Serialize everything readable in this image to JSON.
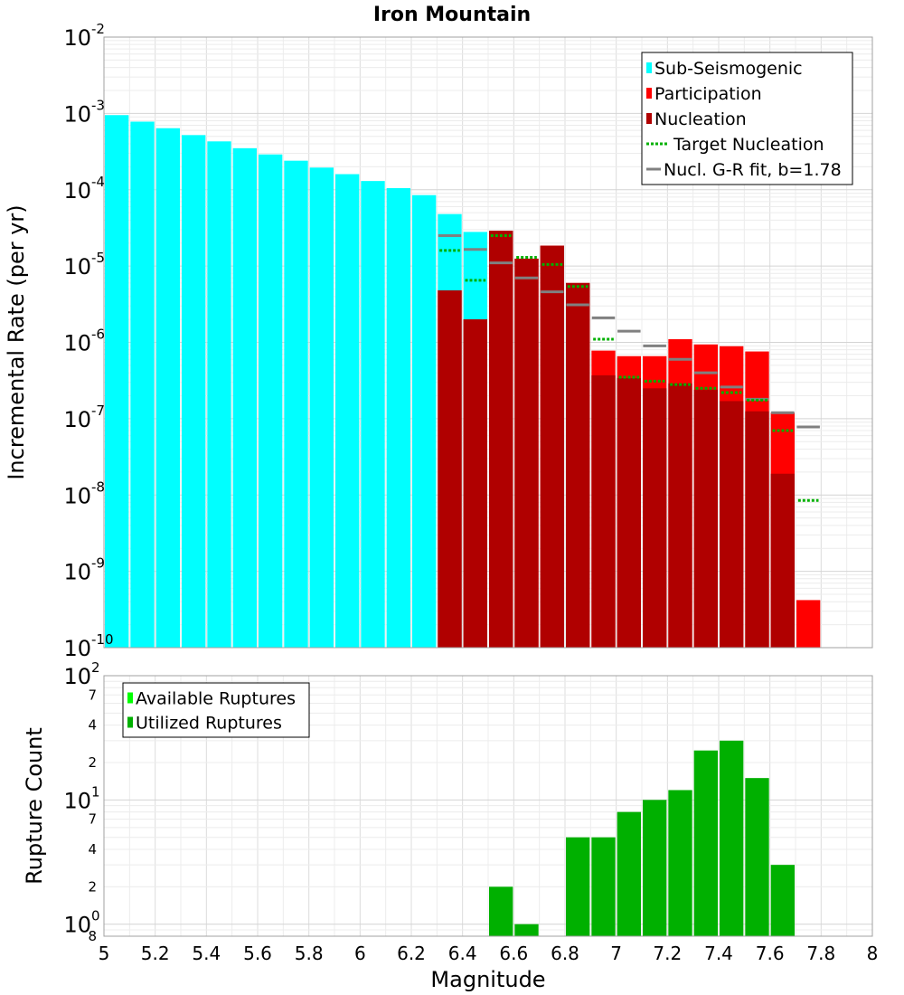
{
  "chart_data": [
    {
      "type": "bar",
      "title": "Iron Mountain",
      "xlabel": "",
      "ylabel": "Incremental Rate (per yr)",
      "xlim": [
        5,
        8
      ],
      "ylim": [
        1e-10,
        0.01
      ],
      "yscale": "log",
      "grid": true,
      "legend_position": "top-right",
      "x_ticks": [
        "5",
        "5.2",
        "5.4",
        "5.6",
        "5.8",
        "6",
        "6.2",
        "6.4",
        "6.6",
        "6.8",
        "7",
        "7.2",
        "7.4",
        "7.6",
        "7.8",
        "8"
      ],
      "y_ticks": [
        {
          "base": "10",
          "exp": "-10"
        },
        {
          "base": "10",
          "exp": "-9"
        },
        {
          "base": "10",
          "exp": "-8"
        },
        {
          "base": "10",
          "exp": "-7"
        },
        {
          "base": "10",
          "exp": "-6"
        },
        {
          "base": "10",
          "exp": "-5"
        },
        {
          "base": "10",
          "exp": "-4"
        },
        {
          "base": "10",
          "exp": "-3"
        },
        {
          "base": "10",
          "exp": "-2"
        }
      ],
      "legend": [
        {
          "label": "Sub-Seismogenic",
          "color": "#00ffff",
          "kind": "box"
        },
        {
          "label": "Participation",
          "color": "#ff0000",
          "kind": "box"
        },
        {
          "label": "Nucleation",
          "color": "#b00000",
          "kind": "box"
        },
        {
          "label": "Target Nucleation",
          "color": "#00b000",
          "kind": "dotted"
        },
        {
          "label": "Nucl. G-R fit, b=1.78",
          "color": "#808080",
          "kind": "line"
        }
      ],
      "series": [
        {
          "name": "Sub-Seismogenic",
          "color": "#00ffff",
          "points": [
            [
              5.05,
              0.00095
            ],
            [
              5.15,
              0.00078
            ],
            [
              5.25,
              0.00064
            ],
            [
              5.35,
              0.00052
            ],
            [
              5.45,
              0.00043
            ],
            [
              5.55,
              0.00035
            ],
            [
              5.65,
              0.00029
            ],
            [
              5.75,
              0.00024
            ],
            [
              5.85,
              0.000195
            ],
            [
              5.95,
              0.00016
            ],
            [
              6.05,
              0.00013
            ],
            [
              6.15,
              0.000105
            ],
            [
              6.25,
              8.5e-05
            ],
            [
              6.35,
              4.8e-05
            ],
            [
              6.45,
              2.8e-05
            ]
          ]
        },
        {
          "name": "Participation",
          "color": "#ff0000",
          "points": [
            [
              6.35,
              4.8e-06
            ],
            [
              6.45,
              2e-06
            ],
            [
              6.55,
              2.9e-05
            ],
            [
              6.65,
              1.25e-05
            ],
            [
              6.75,
              1.85e-05
            ],
            [
              6.85,
              6e-06
            ],
            [
              6.95,
              7.8e-07
            ],
            [
              7.05,
              6.6e-07
            ],
            [
              7.15,
              6.6e-07
            ],
            [
              7.25,
              1.1e-06
            ],
            [
              7.35,
              9.4e-07
            ],
            [
              7.45,
              8.9e-07
            ],
            [
              7.55,
              7.6e-07
            ],
            [
              7.65,
              1.2e-07
            ],
            [
              7.75,
              4.2e-10
            ]
          ]
        },
        {
          "name": "Nucleation",
          "color": "#b00000",
          "points": [
            [
              6.35,
              4.8e-06
            ],
            [
              6.45,
              2e-06
            ],
            [
              6.55,
              2.9e-05
            ],
            [
              6.65,
              1.25e-05
            ],
            [
              6.75,
              1.85e-05
            ],
            [
              6.85,
              6e-06
            ],
            [
              6.95,
              3.7e-07
            ],
            [
              7.05,
              3.4e-07
            ],
            [
              7.15,
              2.5e-07
            ],
            [
              7.25,
              2.9e-07
            ],
            [
              7.35,
              2.4e-07
            ],
            [
              7.45,
              1.7e-07
            ],
            [
              7.55,
              1.25e-07
            ],
            [
              7.65,
              1.9e-08
            ]
          ]
        },
        {
          "name": "Target Nucleation",
          "color": "#00b000",
          "points": [
            [
              6.35,
              1.6e-05
            ],
            [
              6.45,
              6.5e-06
            ],
            [
              6.55,
              2.5e-05
            ],
            [
              6.65,
              1.3e-05
            ],
            [
              6.75,
              1.05e-05
            ],
            [
              6.85,
              5.4e-06
            ],
            [
              6.95,
              1.1e-06
            ],
            [
              7.05,
              3.5e-07
            ],
            [
              7.15,
              3.1e-07
            ],
            [
              7.25,
              2.8e-07
            ],
            [
              7.35,
              2.5e-07
            ],
            [
              7.45,
              2.2e-07
            ],
            [
              7.55,
              1.75e-07
            ],
            [
              7.65,
              7e-08
            ],
            [
              7.75,
              8.5e-09
            ]
          ]
        },
        {
          "name": "Nucl. G-R fit, b=1.78",
          "color": "#808080",
          "points": [
            [
              6.35,
              2.5e-05
            ],
            [
              6.45,
              1.65e-05
            ],
            [
              6.55,
              1.1e-05
            ],
            [
              6.65,
              7e-06
            ],
            [
              6.75,
              4.6e-06
            ],
            [
              6.85,
              3.1e-06
            ],
            [
              6.95,
              2.1e-06
            ],
            [
              7.05,
              1.4e-06
            ],
            [
              7.15,
              9e-07
            ],
            [
              7.25,
              6e-07
            ],
            [
              7.35,
              4e-07
            ],
            [
              7.45,
              2.6e-07
            ],
            [
              7.55,
              1.8e-07
            ],
            [
              7.65,
              1.2e-07
            ],
            [
              7.75,
              7.8e-08
            ]
          ]
        }
      ]
    },
    {
      "type": "bar",
      "title": "",
      "xlabel": "Magnitude",
      "ylabel": "Rupture Count",
      "xlim": [
        5,
        8
      ],
      "ylim": [
        0.8,
        100
      ],
      "yscale": "log",
      "grid": true,
      "legend_position": "top-left",
      "x_ticks": [
        "5",
        "5.2",
        "5.4",
        "5.6",
        "5.8",
        "6",
        "6.2",
        "6.4",
        "6.6",
        "6.8",
        "7",
        "7.2",
        "7.4",
        "7.6",
        "7.8",
        "8"
      ],
      "y_ticks": [
        {
          "value": 1,
          "base": "10",
          "exp": "0"
        },
        {
          "value": 10,
          "base": "10",
          "exp": "1"
        },
        {
          "value": 100,
          "base": "10",
          "exp": "2"
        }
      ],
      "y_minor_ticks": [
        {
          "value": 0.8,
          "label": "8"
        },
        {
          "value": 2,
          "label": "2"
        },
        {
          "value": 4,
          "label": "4"
        },
        {
          "value": 7,
          "label": "7"
        },
        {
          "value": 20,
          "label": "2"
        },
        {
          "value": 40,
          "label": "4"
        },
        {
          "value": 70,
          "label": "7"
        }
      ],
      "legend": [
        {
          "label": "Available Ruptures",
          "color": "#00ff00",
          "kind": "box"
        },
        {
          "label": "Utilized Ruptures",
          "color": "#00b000",
          "kind": "box"
        }
      ],
      "series": [
        {
          "name": "Utilized Ruptures",
          "color": "#00b000",
          "points": [
            [
              6.55,
              2
            ],
            [
              6.65,
              1
            ],
            [
              6.85,
              5
            ],
            [
              6.95,
              5
            ],
            [
              7.05,
              8
            ],
            [
              7.15,
              10
            ],
            [
              7.25,
              12
            ],
            [
              7.35,
              25
            ],
            [
              7.45,
              30
            ],
            [
              7.55,
              15
            ],
            [
              7.65,
              3
            ]
          ]
        }
      ]
    }
  ]
}
